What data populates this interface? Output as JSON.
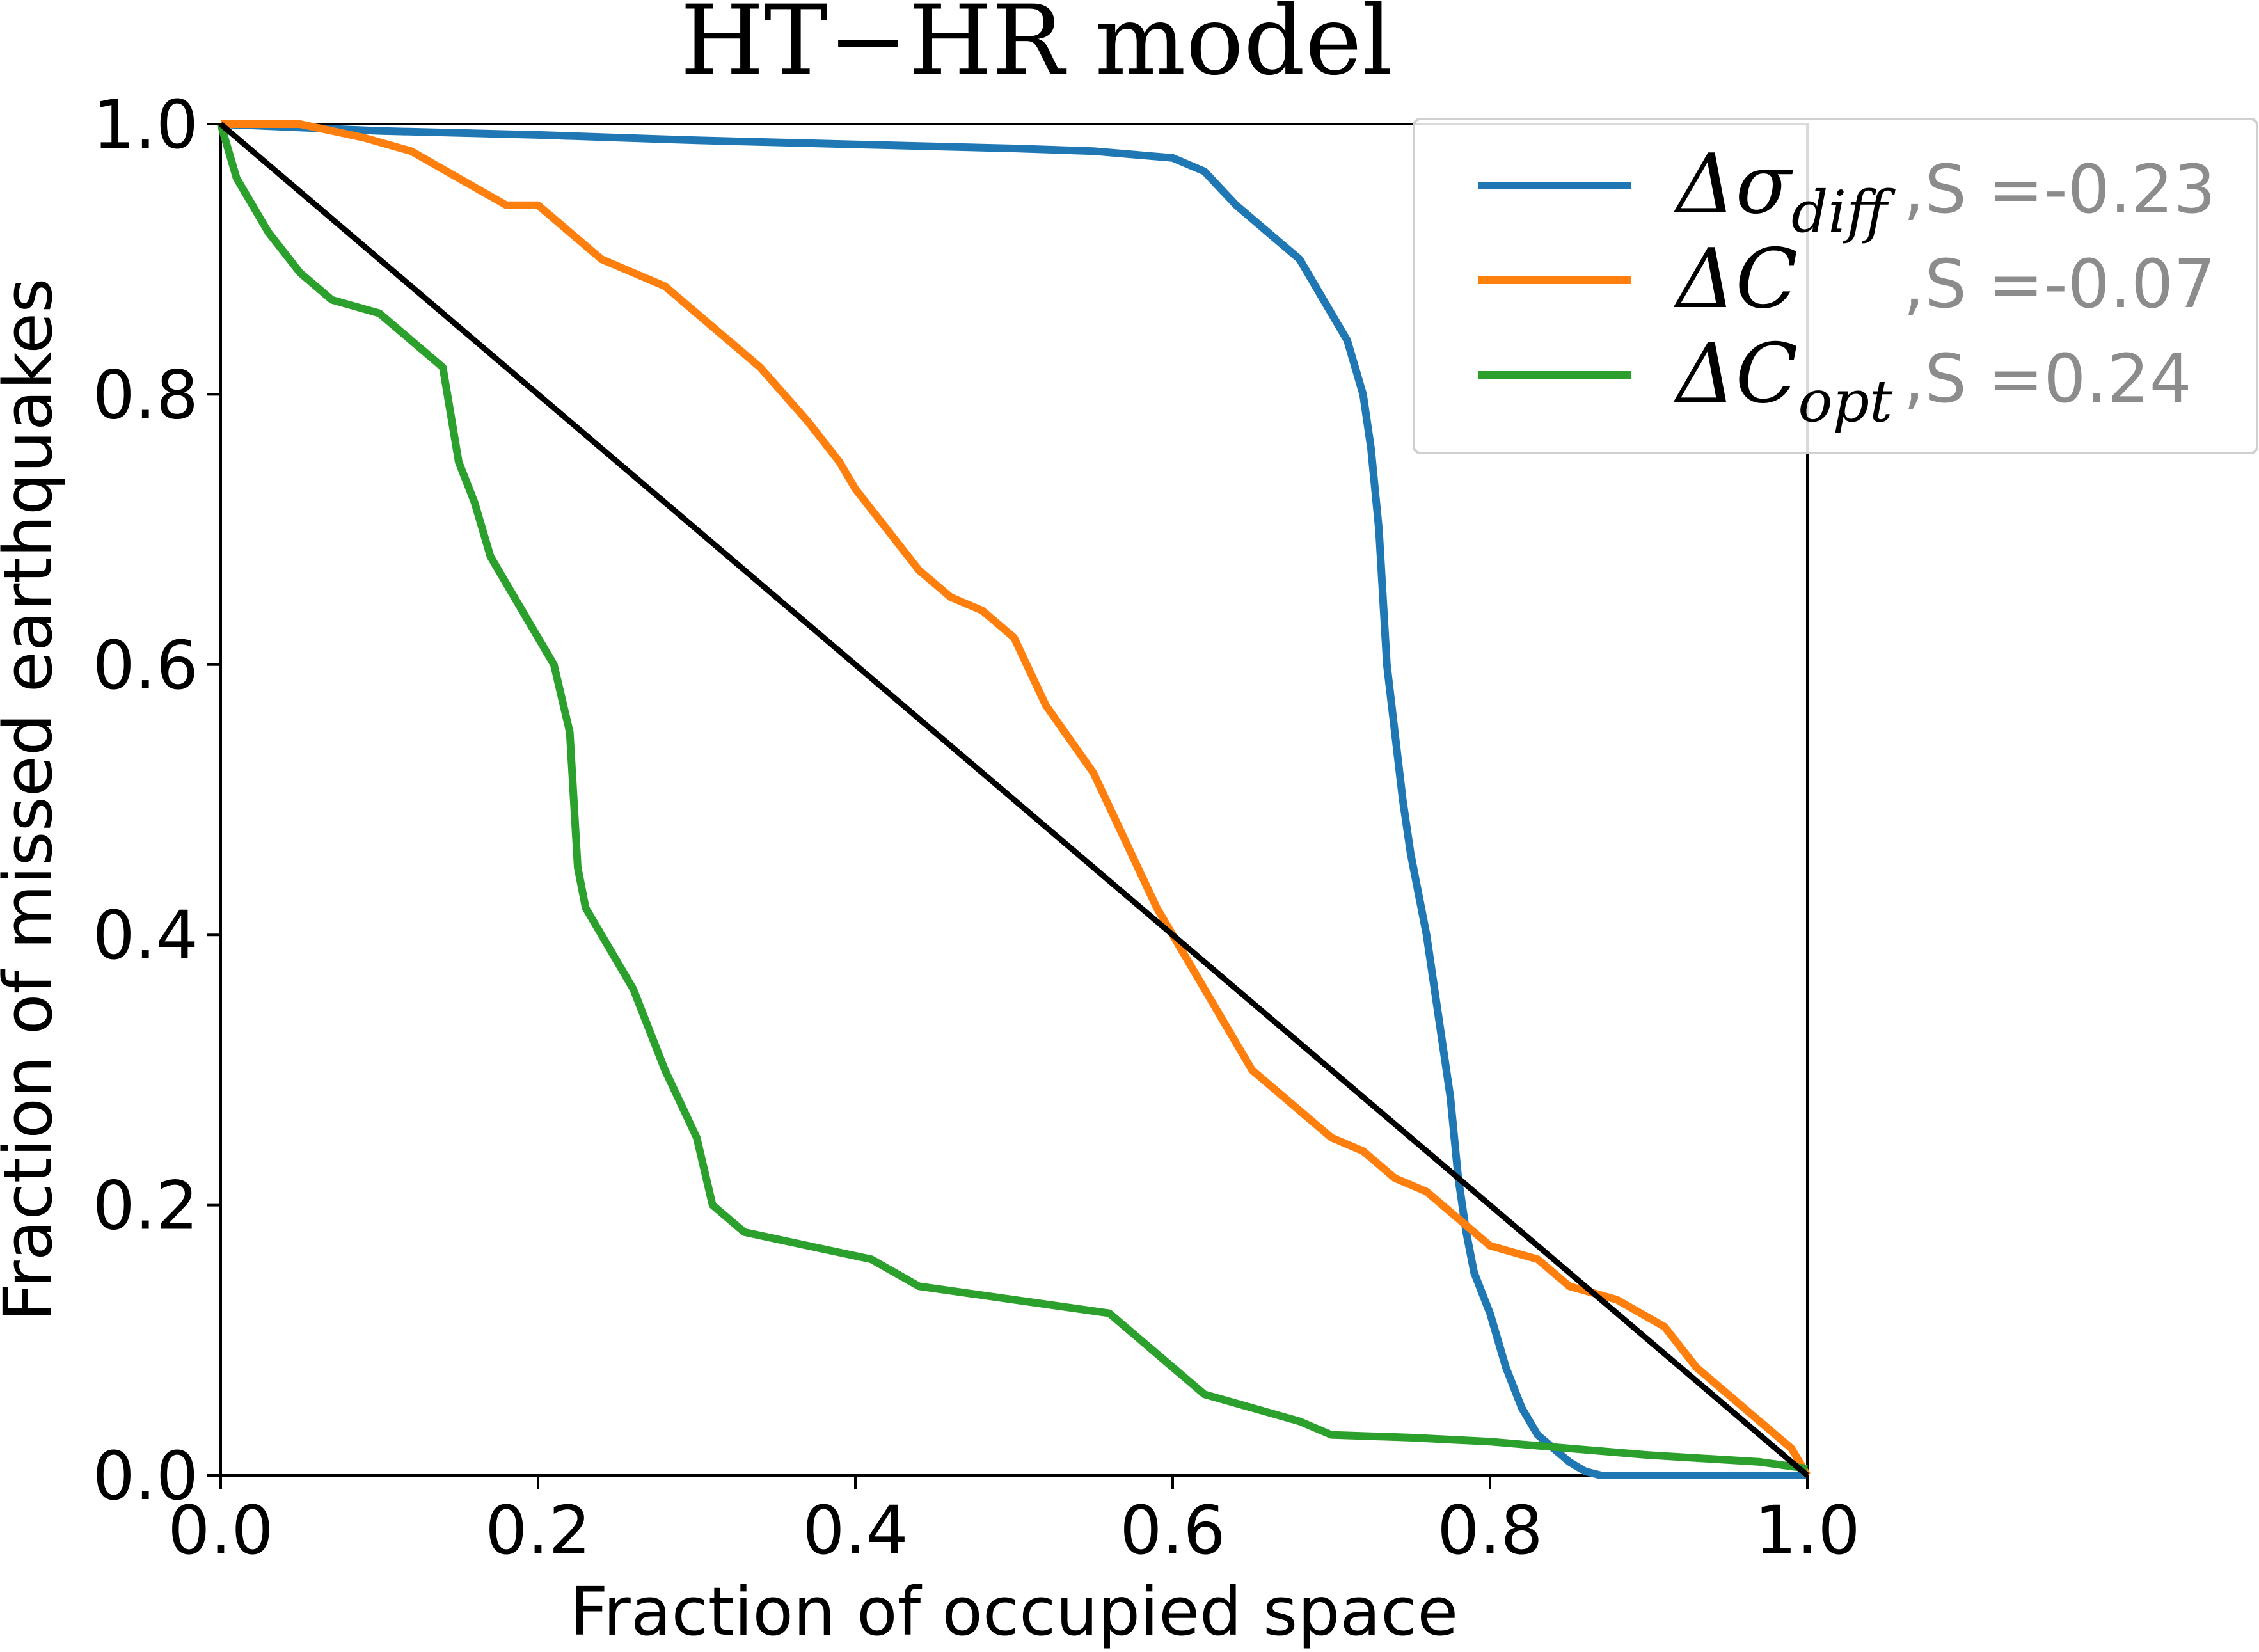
{
  "chart_data": {
    "type": "line",
    "title": "HT−HR model",
    "xlabel": "Fraction of occupied space",
    "ylabel": "Fraction of missed earthquakes",
    "xlim": [
      0.0,
      1.0
    ],
    "ylim": [
      0.0,
      1.0
    ],
    "xticks": [
      "0.0",
      "0.2",
      "0.4",
      "0.6",
      "0.8",
      "1.0"
    ],
    "yticks": [
      "0.0",
      "0.2",
      "0.4",
      "0.6",
      "0.8",
      "1.0"
    ],
    "grid": false,
    "legend_position": "top-right",
    "series": [
      {
        "name": "Δσdiff",
        "symbol_base": "Δσ",
        "symbol_sub": "diff",
        "stat": ",S =-0.23",
        "color": "#1f77b4",
        "x": [
          0.0,
          0.1,
          0.2,
          0.25,
          0.3,
          0.4,
          0.5,
          0.55,
          0.6,
          0.62,
          0.64,
          0.66,
          0.68,
          0.69,
          0.7,
          0.71,
          0.72,
          0.725,
          0.73,
          0.735,
          0.74,
          0.745,
          0.75,
          0.76,
          0.77,
          0.775,
          0.78,
          0.785,
          0.79,
          0.8,
          0.81,
          0.82,
          0.83,
          0.84,
          0.85,
          0.86,
          0.87,
          0.9,
          1.0
        ],
        "y": [
          1.0,
          0.995,
          0.992,
          0.99,
          0.988,
          0.985,
          0.982,
          0.98,
          0.975,
          0.965,
          0.94,
          0.92,
          0.9,
          0.88,
          0.86,
          0.84,
          0.8,
          0.76,
          0.7,
          0.6,
          0.55,
          0.5,
          0.46,
          0.4,
          0.32,
          0.28,
          0.22,
          0.18,
          0.15,
          0.12,
          0.08,
          0.05,
          0.03,
          0.02,
          0.01,
          0.003,
          0.0,
          0.0,
          0.0
        ]
      },
      {
        "name": "ΔC",
        "symbol_base": "ΔC",
        "symbol_sub": "",
        "stat": ",S =-0.07",
        "color": "#ff7f0e",
        "x": [
          0.0,
          0.05,
          0.09,
          0.12,
          0.15,
          0.18,
          0.2,
          0.24,
          0.28,
          0.31,
          0.34,
          0.37,
          0.39,
          0.4,
          0.42,
          0.44,
          0.46,
          0.48,
          0.5,
          0.52,
          0.55,
          0.57,
          0.59,
          0.61,
          0.63,
          0.65,
          0.68,
          0.7,
          0.72,
          0.74,
          0.76,
          0.78,
          0.8,
          0.83,
          0.85,
          0.88,
          0.91,
          0.93,
          0.96,
          0.99,
          1.0
        ],
        "y": [
          1.0,
          1.0,
          0.99,
          0.98,
          0.96,
          0.94,
          0.94,
          0.9,
          0.88,
          0.85,
          0.82,
          0.78,
          0.75,
          0.73,
          0.7,
          0.67,
          0.65,
          0.64,
          0.62,
          0.57,
          0.52,
          0.47,
          0.42,
          0.38,
          0.34,
          0.3,
          0.27,
          0.25,
          0.24,
          0.22,
          0.21,
          0.19,
          0.17,
          0.16,
          0.14,
          0.13,
          0.11,
          0.08,
          0.05,
          0.02,
          0.0
        ]
      },
      {
        "name": "ΔCopt",
        "symbol_base": "ΔC",
        "symbol_sub": "opt",
        "stat": ",S =0.24",
        "color": "#2ca02c",
        "x": [
          0.0,
          0.01,
          0.03,
          0.05,
          0.07,
          0.1,
          0.12,
          0.14,
          0.15,
          0.16,
          0.17,
          0.19,
          0.2,
          0.21,
          0.22,
          0.225,
          0.23,
          0.26,
          0.28,
          0.3,
          0.31,
          0.33,
          0.37,
          0.41,
          0.44,
          0.5,
          0.56,
          0.58,
          0.6,
          0.62,
          0.65,
          0.68,
          0.7,
          0.75,
          0.8,
          0.85,
          0.9,
          0.97,
          1.0
        ],
        "y": [
          1.0,
          0.96,
          0.92,
          0.89,
          0.87,
          0.86,
          0.84,
          0.82,
          0.75,
          0.72,
          0.68,
          0.64,
          0.62,
          0.6,
          0.55,
          0.45,
          0.42,
          0.36,
          0.3,
          0.25,
          0.2,
          0.18,
          0.17,
          0.16,
          0.14,
          0.13,
          0.12,
          0.1,
          0.08,
          0.06,
          0.05,
          0.04,
          0.03,
          0.028,
          0.025,
          0.02,
          0.015,
          0.01,
          0.005
        ]
      },
      {
        "name": "",
        "color": "#000000",
        "x": [
          0.0,
          1.0
        ],
        "y": [
          1.0,
          0.0
        ]
      }
    ]
  }
}
